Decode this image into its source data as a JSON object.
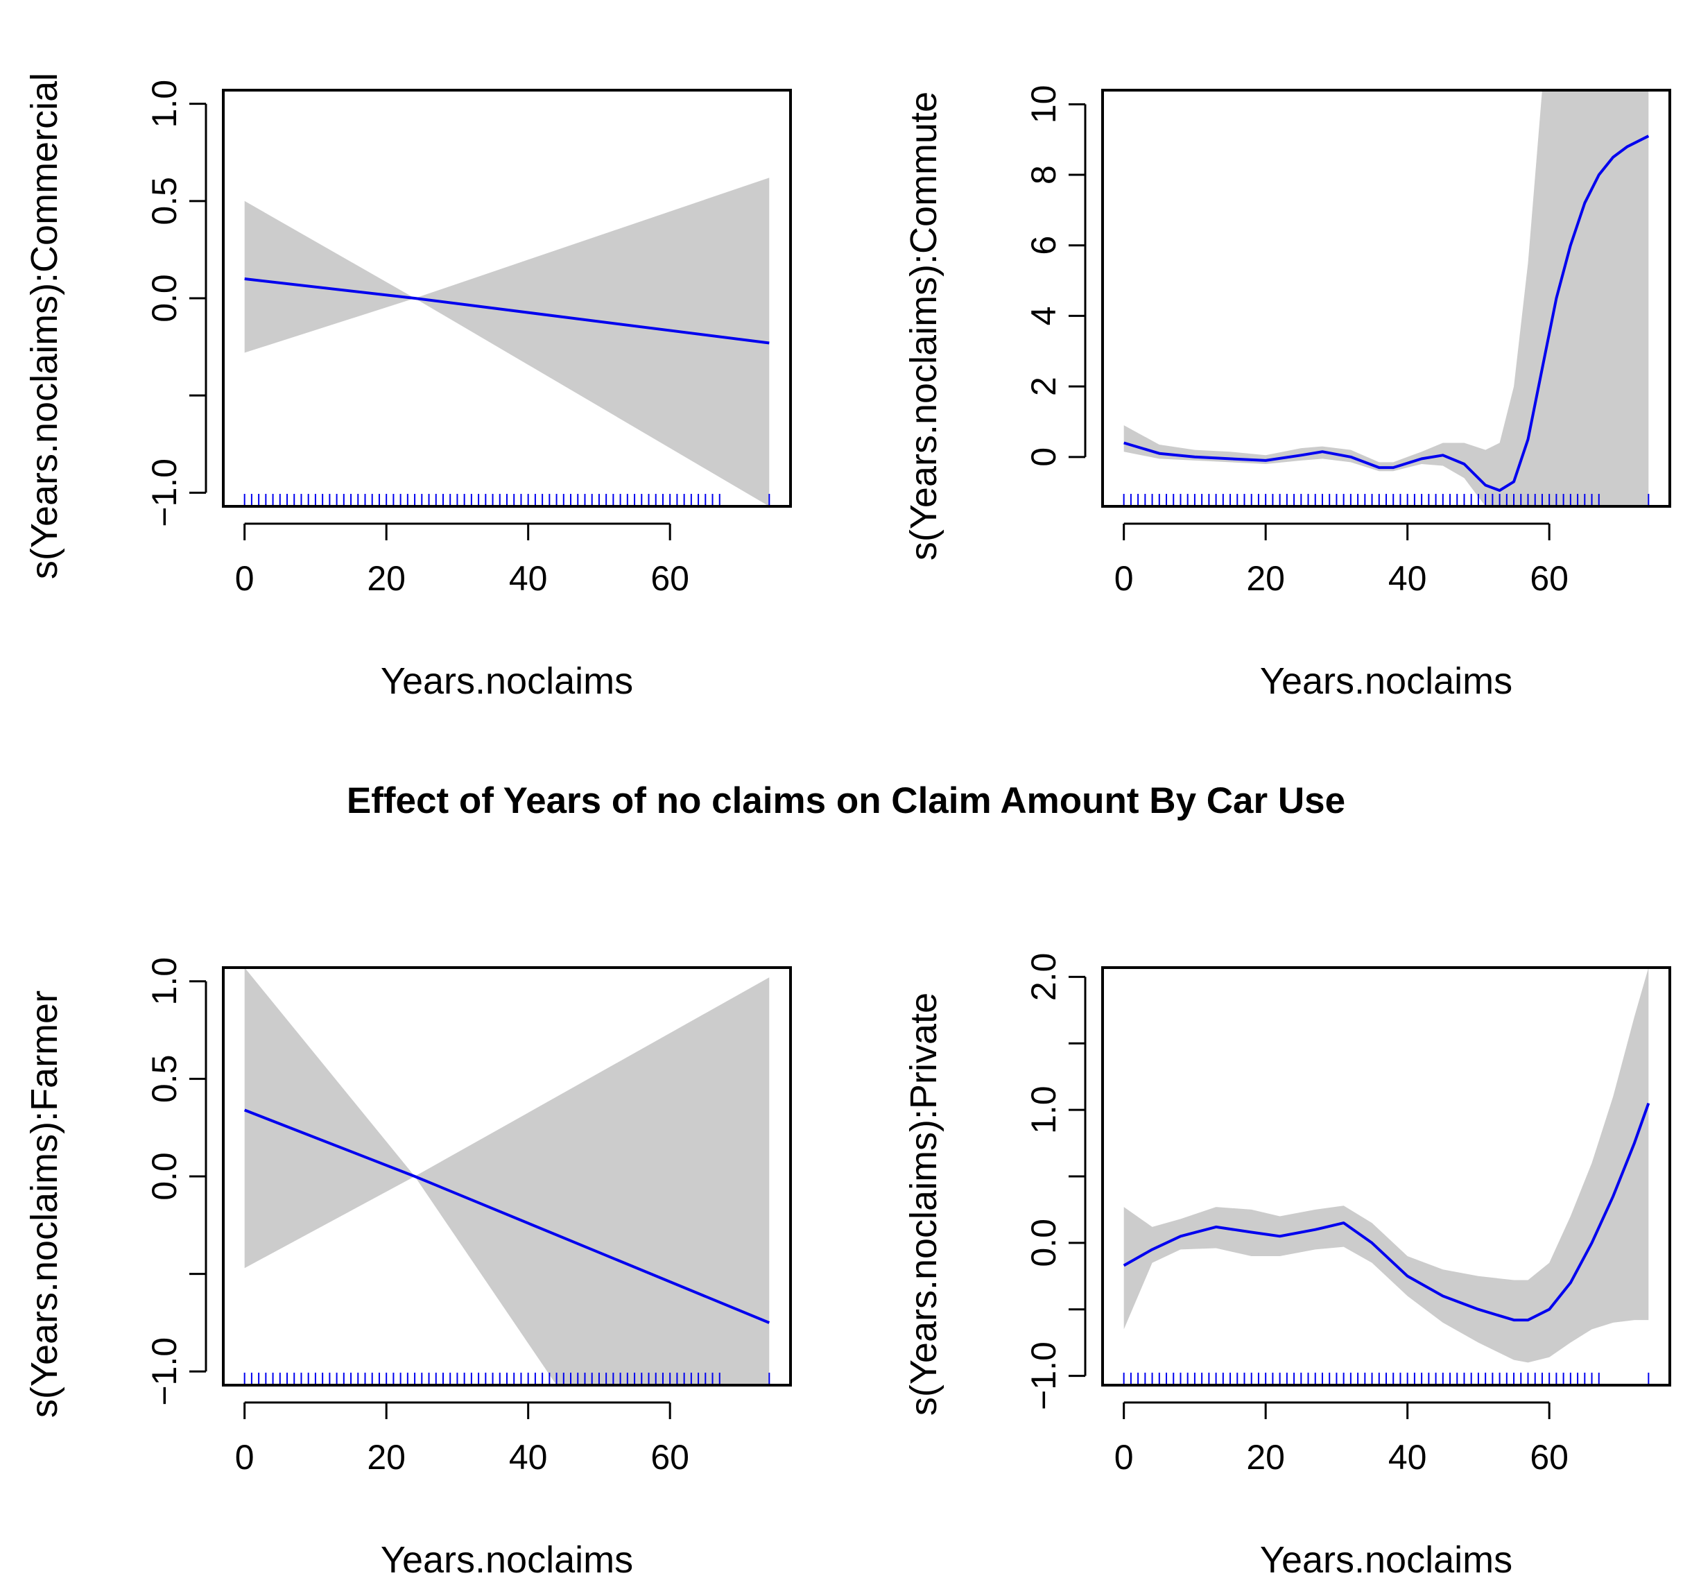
{
  "title": "Effect of Years of no claims on Claim Amount By Car Use",
  "colors": {
    "line": "#0000EE",
    "band": "#CCCCCC",
    "rug": "#0000EE",
    "axis": "#000000"
  },
  "chart_data": [
    {
      "type": "line",
      "panel": "top-left",
      "title": "",
      "xlabel": "Years.noclaims",
      "ylabel": "s(Years.noclaims):Commercial",
      "xlim": [
        -3,
        77
      ],
      "ylim": [
        -1.07,
        1.07
      ],
      "xticks": [
        0,
        20,
        40,
        60
      ],
      "xtick_labels": [
        "0",
        "20",
        "40",
        "60"
      ],
      "yticks": [
        -1.0,
        -0.5,
        0.0,
        0.5,
        1.0
      ],
      "ytick_labels": [
        "-1.0",
        "",
        "0.0",
        "0.5",
        "1.0"
      ],
      "x": [
        0,
        24,
        74
      ],
      "y": [
        0.1,
        0.0,
        -0.23
      ],
      "lower": [
        -0.28,
        0.0,
        -1.07
      ],
      "upper": [
        0.5,
        0.0,
        0.62
      ],
      "rug": "0-67 step 1, 74"
    },
    {
      "type": "line",
      "panel": "top-right",
      "title": "",
      "xlabel": "Years.noclaims",
      "ylabel": "s(Years.noclaims):Commute",
      "xlim": [
        -3,
        77
      ],
      "ylim": [
        -1.4,
        10.4
      ],
      "xticks": [
        0,
        20,
        40,
        60
      ],
      "xtick_labels": [
        "0",
        "20",
        "40",
        "60"
      ],
      "yticks": [
        0,
        2,
        4,
        6,
        8,
        10
      ],
      "ytick_labels": [
        "0",
        "2",
        "4",
        "6",
        "8",
        "10"
      ],
      "x": [
        0,
        5,
        10,
        15,
        20,
        25,
        28,
        32,
        36,
        38,
        42,
        45,
        48,
        51,
        53,
        55,
        57,
        59,
        61,
        63,
        65,
        67,
        69,
        71,
        74
      ],
      "y": [
        0.4,
        0.1,
        0.0,
        -0.05,
        -0.1,
        0.05,
        0.15,
        0.0,
        -0.3,
        -0.3,
        -0.05,
        0.05,
        -0.2,
        -0.8,
        -0.95,
        -0.7,
        0.5,
        2.5,
        4.5,
        6.0,
        7.2,
        8.0,
        8.5,
        8.8,
        9.1
      ],
      "lower": [
        0.15,
        -0.05,
        -0.1,
        -0.15,
        -0.2,
        -0.1,
        -0.05,
        -0.15,
        -0.4,
        -0.4,
        -0.2,
        -0.25,
        -0.6,
        -1.4,
        -1.4,
        -1.4,
        -1.4,
        -1.4,
        -1.4,
        -1.4,
        -1.4,
        -1.4,
        -1.4,
        -1.4,
        -1.4
      ],
      "upper": [
        0.9,
        0.35,
        0.2,
        0.15,
        0.05,
        0.25,
        0.3,
        0.2,
        -0.15,
        -0.15,
        0.15,
        0.4,
        0.4,
        0.2,
        0.4,
        2.0,
        5.5,
        10.4,
        10.4,
        10.4,
        10.4,
        10.4,
        10.4,
        10.4,
        10.4
      ],
      "rug": "0-67 step 1, 74"
    },
    {
      "type": "line",
      "panel": "bottom-left",
      "title": "",
      "xlabel": "Years.noclaims",
      "ylabel": "s(Years.noclaims):Farmer",
      "xlim": [
        -3,
        77
      ],
      "ylim": [
        -1.07,
        1.07
      ],
      "xticks": [
        0,
        20,
        40,
        60
      ],
      "xtick_labels": [
        "0",
        "20",
        "40",
        "60"
      ],
      "yticks": [
        -1.0,
        -0.5,
        0.0,
        0.5,
        1.0
      ],
      "ytick_labels": [
        "-1.0",
        "",
        "0.0",
        "0.5",
        "1.0"
      ],
      "x": [
        0,
        24,
        74
      ],
      "y": [
        0.34,
        0.0,
        -0.75
      ],
      "lower": [
        -0.47,
        0.0,
        -1.07
      ],
      "upper": [
        1.07,
        0.0,
        1.02
      ],
      "lower_extra": {
        "x": 44,
        "y": -1.07
      },
      "rug": "0-67 step 1, 74"
    },
    {
      "type": "line",
      "panel": "bottom-right",
      "title": "",
      "xlabel": "Years.noclaims",
      "ylabel": "s(Years.noclaims):Private",
      "xlim": [
        -3,
        77
      ],
      "ylim": [
        -1.07,
        2.07
      ],
      "xticks": [
        0,
        20,
        40,
        60
      ],
      "xtick_labels": [
        "0",
        "20",
        "40",
        "60"
      ],
      "yticks": [
        -1.0,
        -0.5,
        0.0,
        0.5,
        1.0,
        1.5,
        2.0
      ],
      "ytick_labels": [
        "-1.0",
        "",
        "0.0",
        "",
        "1.0",
        "",
        "2.0"
      ],
      "x": [
        0,
        4,
        8,
        13,
        18,
        22,
        27,
        31,
        35,
        40,
        45,
        50,
        55,
        57,
        60,
        63,
        66,
        69,
        72,
        74
      ],
      "y": [
        -0.17,
        -0.05,
        0.05,
        0.12,
        0.08,
        0.05,
        0.1,
        0.15,
        0.0,
        -0.25,
        -0.4,
        -0.5,
        -0.58,
        -0.58,
        -0.5,
        -0.3,
        0.0,
        0.35,
        0.75,
        1.05
      ],
      "lower": [
        -0.65,
        -0.15,
        -0.05,
        -0.04,
        -0.1,
        -0.1,
        -0.05,
        -0.03,
        -0.15,
        -0.4,
        -0.6,
        -0.75,
        -0.88,
        -0.9,
        -0.86,
        -0.75,
        -0.65,
        -0.6,
        -0.58,
        -0.58
      ],
      "upper": [
        0.27,
        0.12,
        0.18,
        0.27,
        0.25,
        0.2,
        0.25,
        0.28,
        0.15,
        -0.1,
        -0.2,
        -0.25,
        -0.28,
        -0.28,
        -0.15,
        0.2,
        0.6,
        1.1,
        1.7,
        2.07
      ],
      "rug": "0-67 step 1, 74"
    }
  ]
}
